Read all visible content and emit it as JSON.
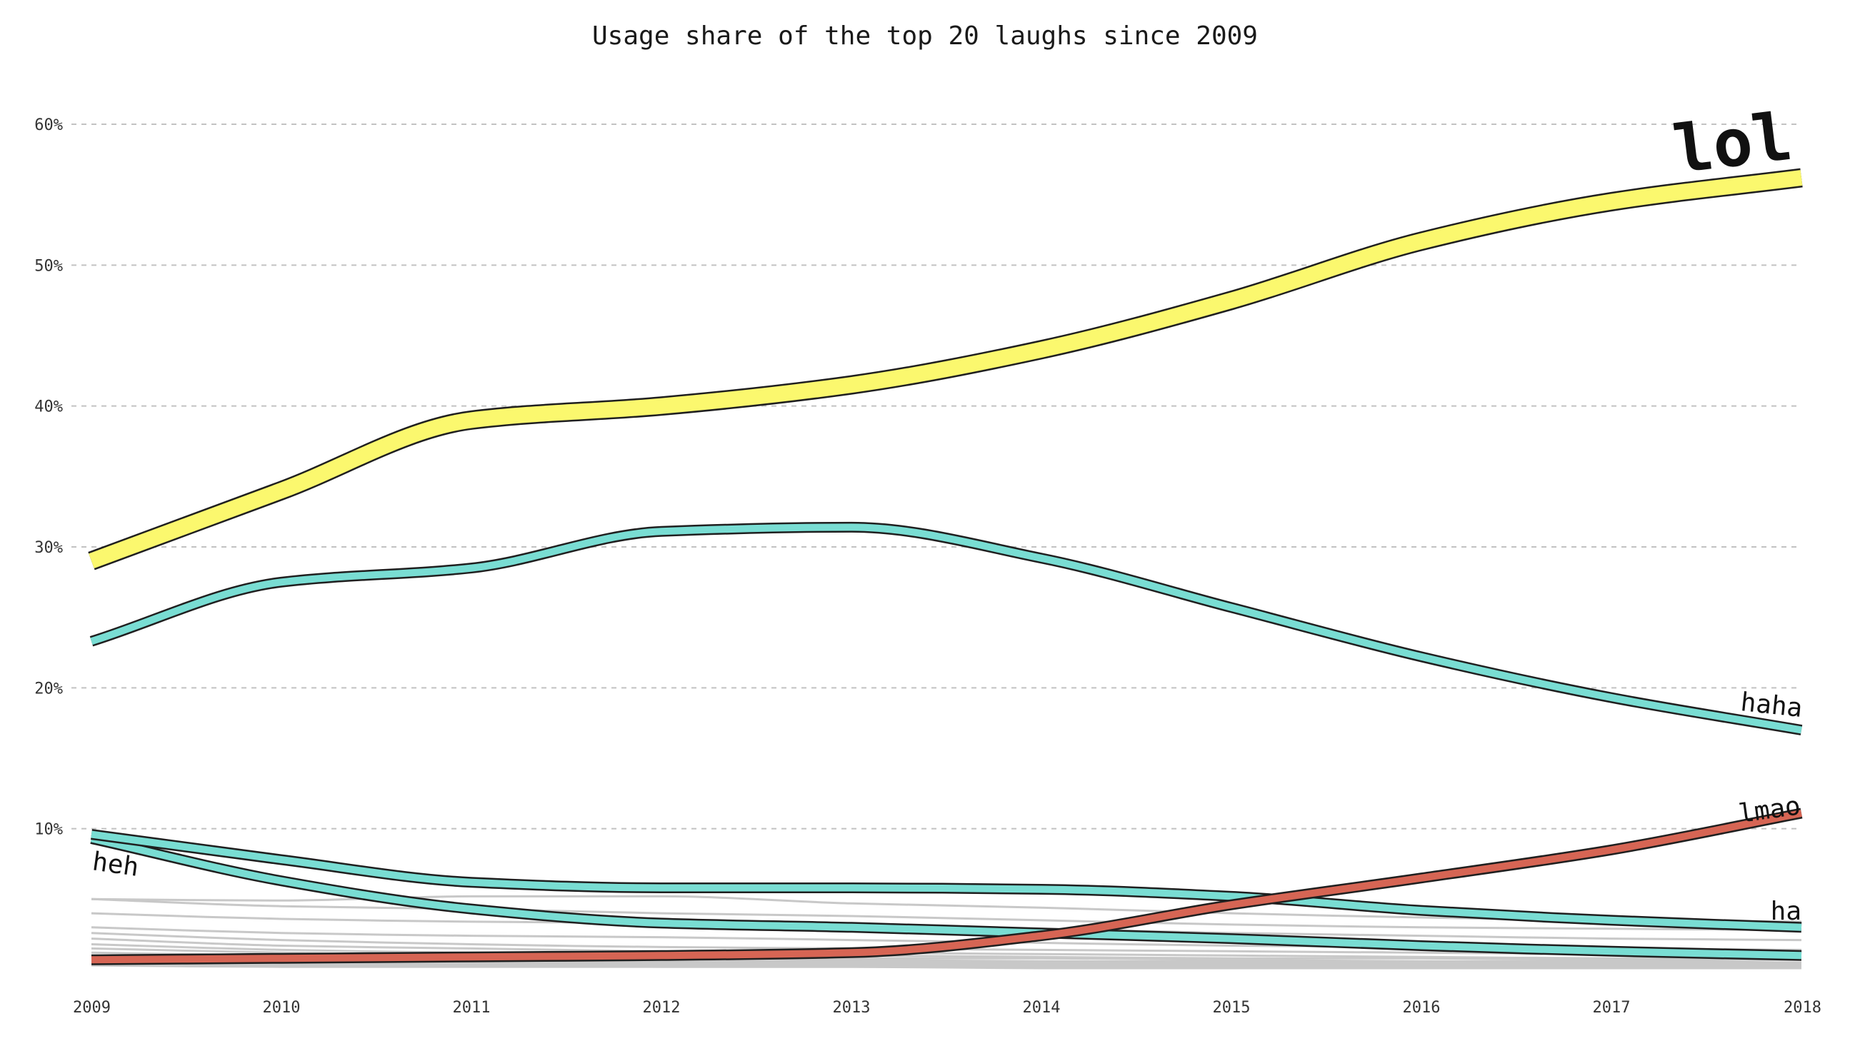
{
  "chart_data": {
    "type": "line",
    "title": "Usage share of the top 20 laughs since 2009",
    "xlabel": "",
    "ylabel": "",
    "x": [
      2009,
      2010,
      2011,
      2012,
      2013,
      2014,
      2015,
      2016,
      2017,
      2018
    ],
    "x_tick_labels": [
      "2009",
      "2010",
      "2011",
      "2012",
      "2013",
      "2014",
      "2015",
      "2016",
      "2017",
      "2018"
    ],
    "ylim": [
      0,
      0.6
    ],
    "y_ticks": [
      0.1,
      0.2,
      0.3,
      0.4,
      0.5,
      0.6
    ],
    "y_tick_labels": [
      "10%",
      "20%",
      "30%",
      "40%",
      "50%",
      "60%"
    ],
    "grid": "horizontal dashed",
    "legend": "none (direct labels at line ends)",
    "highlighted_series": [
      {
        "label": "lol",
        "values": [
          0.29,
          0.34,
          0.39,
          0.4,
          0.415,
          0.44,
          0.475,
          0.517,
          0.545,
          0.562
        ],
        "color": "#fbf86e",
        "width_style": "thick"
      },
      {
        "label": "haha",
        "values": [
          0.233,
          0.275,
          0.285,
          0.311,
          0.314,
          0.292,
          0.257,
          0.222,
          0.193,
          0.17
        ],
        "color": "#79ddd3",
        "width_style": "medium"
      },
      {
        "label": "lmao",
        "values": [
          0.007,
          0.008,
          0.009,
          0.01,
          0.012,
          0.024,
          0.046,
          0.065,
          0.085,
          0.111
        ],
        "color": "#d66554",
        "width_style": "medium"
      },
      {
        "label": "ha",
        "values": [
          0.096,
          0.078,
          0.062,
          0.058,
          0.058,
          0.057,
          0.052,
          0.042,
          0.035,
          0.03
        ],
        "color": "#79ddd3",
        "width_style": "medium"
      },
      {
        "label": "heh",
        "values": [
          0.093,
          0.063,
          0.043,
          0.033,
          0.03,
          0.026,
          0.022,
          0.017,
          0.013,
          0.01
        ],
        "color": "#79ddd3",
        "width_style": "medium"
      }
    ],
    "background_series": [
      {
        "values": [
          0.05,
          0.049,
          0.052,
          0.052,
          0.047,
          0.044,
          0.04,
          0.037,
          0.035,
          0.034
        ]
      },
      {
        "values": [
          0.05,
          0.045,
          0.043,
          0.04,
          0.038,
          0.035,
          0.032,
          0.03,
          0.029,
          0.028
        ]
      },
      {
        "values": [
          0.04,
          0.036,
          0.034,
          0.033,
          0.031,
          0.029,
          0.026,
          0.024,
          0.022,
          0.021
        ]
      },
      {
        "values": [
          0.03,
          0.026,
          0.024,
          0.023,
          0.021,
          0.019,
          0.017,
          0.016,
          0.015,
          0.014
        ]
      },
      {
        "values": [
          0.026,
          0.021,
          0.018,
          0.016,
          0.015,
          0.014,
          0.013,
          0.012,
          0.011,
          0.01
        ]
      },
      {
        "values": [
          0.022,
          0.017,
          0.015,
          0.013,
          0.012,
          0.011,
          0.01,
          0.009,
          0.008,
          0.008
        ]
      },
      {
        "values": [
          0.018,
          0.014,
          0.012,
          0.011,
          0.01,
          0.009,
          0.008,
          0.008,
          0.007,
          0.007
        ]
      },
      {
        "values": [
          0.015,
          0.012,
          0.01,
          0.009,
          0.008,
          0.008,
          0.007,
          0.006,
          0.006,
          0.005
        ]
      },
      {
        "values": [
          0.012,
          0.01,
          0.008,
          0.008,
          0.007,
          0.006,
          0.006,
          0.005,
          0.005,
          0.004
        ]
      },
      {
        "values": [
          0.01,
          0.008,
          0.007,
          0.006,
          0.006,
          0.005,
          0.005,
          0.004,
          0.004,
          0.004
        ]
      },
      {
        "values": [
          0.008,
          0.006,
          0.005,
          0.005,
          0.005,
          0.004,
          0.004,
          0.003,
          0.003,
          0.003
        ]
      },
      {
        "values": [
          0.006,
          0.005,
          0.004,
          0.004,
          0.004,
          0.003,
          0.003,
          0.003,
          0.002,
          0.002
        ]
      },
      {
        "values": [
          0.005,
          0.004,
          0.003,
          0.003,
          0.003,
          0.003,
          0.002,
          0.002,
          0.002,
          0.002
        ]
      },
      {
        "values": [
          0.004,
          0.003,
          0.003,
          0.002,
          0.002,
          0.002,
          0.002,
          0.002,
          0.001,
          0.001
        ]
      },
      {
        "values": [
          0.003,
          0.002,
          0.002,
          0.002,
          0.002,
          0.001,
          0.001,
          0.001,
          0.001,
          0.001
        ]
      }
    ],
    "background_color": "#c8c8c8",
    "outline_color": "#1f1f1f"
  }
}
